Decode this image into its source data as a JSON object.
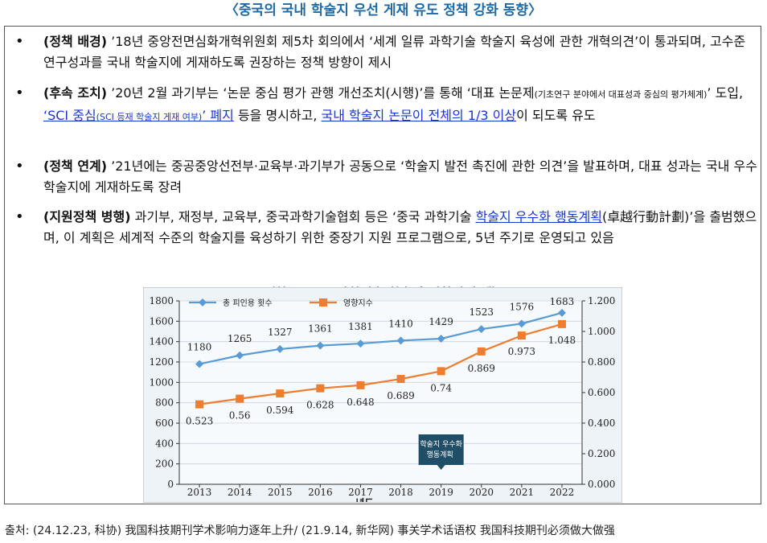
{
  "title": "〈중국의 국내 학술지 우선 게재 유도 정책 강화 동향〉",
  "bullets": [
    {
      "label": "(정책 배경)",
      "text": " ’18년 중앙전면심화개혁위원회 제5차 회의에서 ‘세계 일류 과학기술 학술지 육성에 관한 개혁의견’이 통과되며, 고수준 연구성과를 국내 학술지에 게재하도록 권장하는 정책 방향이 제시"
    },
    {
      "label": "(후속 조치)",
      "text_a": " ’20년 2월 과기부는 ‘논문 중심 평가 관행 개선조치(시행)’를 통해 ‘대표 논문제",
      "small_a": "(기초연구 분야에서 대표성과 중심의 평가체계)",
      "text_b": "’ 도입, ",
      "link_a": "‘SCI 중심",
      "link_a_small": "(SCI 등재 학술지 게재 여부)",
      "link_a_end": "’ 폐지",
      "text_c": " 등을 명시하고, ",
      "link_b": "국내 학술지 논문이 전체의 1/3 이상",
      "text_d": "이 되도록 유도"
    },
    {
      "label": "(정책 연계)",
      "text": " ’21년에는 중공중앙선전부·교육부·과기부가 공동으로 ‘학술지 발전 촉진에 관한 의견’을 발표하며, 대표 성과는 국내 우수 학술지에 게재하도록 장려"
    },
    {
      "label": "(지원정책 병행)",
      "text_a": " 과기부, 재정부, 교육부, 중국과학기술협회 등은 ‘중국 과학기술 ",
      "link": "학술지 우수화 행동계획",
      "text_b": "(卓越行動計劃)’을 출범했으며, 이 계획은 세계적 수준의 학술지를 육성하기 위한 중장기 지원 프로그램으로, 5년 주기로 운영되고 있음"
    }
  ],
  "chart_title": "〈참고: 중국 과학기술 학술지 영향력 추세〉",
  "source": "출처: (24.12.23, 科协) 我国科技期刊学术影响力逐年上升/ (21.9.14, 新华网) 事关学术话语权 我国科技期刊必须做大做强",
  "chart_data": {
    "type": "line",
    "x": [
      2013,
      2014,
      2015,
      2016,
      2017,
      2018,
      2019,
      2020,
      2021,
      2022
    ],
    "xlabel": "년도",
    "series": [
      {
        "name": "총 피인용 횟수",
        "axis": "left",
        "color": "#5b9bd5",
        "values": [
          1180,
          1265,
          1327,
          1361,
          1381,
          1410,
          1429,
          1523,
          1576,
          1683
        ]
      },
      {
        "name": "영향지수",
        "axis": "right",
        "color": "#ed7d31",
        "values": [
          0.523,
          0.56,
          0.594,
          0.628,
          0.648,
          0.689,
          0.74,
          0.869,
          0.973,
          1.048
        ]
      }
    ],
    "y_left": {
      "min": 0,
      "max": 1800,
      "ticks": [
        0,
        200,
        400,
        600,
        800,
        1000,
        1200,
        1400,
        1600,
        1800
      ]
    },
    "y_right": {
      "min": 0,
      "max": 1.2,
      "ticks": [
        "0.000",
        "0.200",
        "0.400",
        "0.600",
        "0.800",
        "1.000",
        "1.200"
      ]
    },
    "legend_position": "top-left",
    "grid": true,
    "annotation": {
      "text_line1": "학술지 우수화",
      "text_line2": "행동계획",
      "x": 2019,
      "color": "#1f4e66"
    }
  }
}
